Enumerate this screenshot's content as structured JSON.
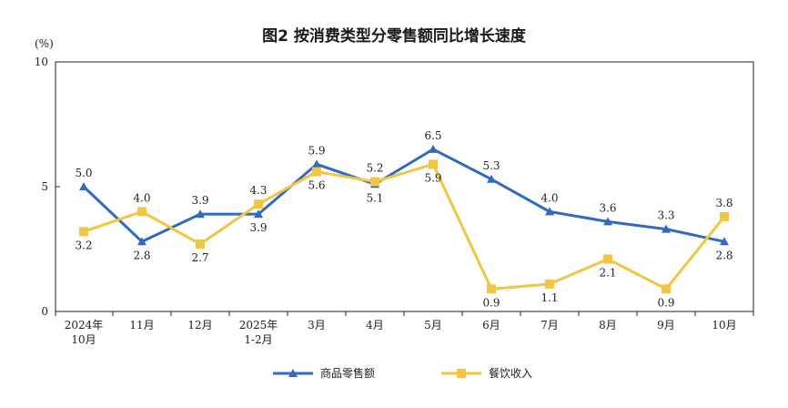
{
  "chart_data": {
    "type": "line",
    "title": "图2  按消费类型分零售额同比增长速度",
    "ylabel": "(%)",
    "ylim": [
      0,
      10
    ],
    "yticks": [
      "0",
      "5",
      "10"
    ],
    "categories": [
      [
        "2024年",
        "10月"
      ],
      [
        "11月"
      ],
      [
        "12月"
      ],
      [
        "2025年",
        "1-2月"
      ],
      [
        "3月"
      ],
      [
        "4月"
      ],
      [
        "5月"
      ],
      [
        "6月"
      ],
      [
        "7月"
      ],
      [
        "8月"
      ],
      [
        "9月"
      ],
      [
        "10月"
      ]
    ],
    "series": [
      {
        "name": "商品零售额",
        "color": "#2f6bbf",
        "marker": "triangle",
        "values": [
          5.0,
          2.8,
          3.9,
          3.9,
          5.9,
          5.1,
          6.5,
          5.3,
          4.0,
          3.6,
          3.3,
          2.8
        ],
        "labels": [
          "5.0",
          "2.8",
          "3.9",
          "3.9",
          "5.9",
          "5.1",
          "6.5",
          "5.3",
          "4.0",
          "3.6",
          "3.3",
          "2.8"
        ],
        "label_pos": [
          "above",
          "below",
          "above",
          "below",
          "above",
          "below",
          "above",
          "above",
          "above",
          "above",
          "above",
          "below"
        ]
      },
      {
        "name": "餐饮收入",
        "color": "#f2c542",
        "marker": "square",
        "values": [
          3.2,
          4.0,
          2.7,
          4.3,
          5.6,
          5.2,
          5.9,
          0.9,
          1.1,
          2.1,
          0.9,
          3.8
        ],
        "labels": [
          "3.2",
          "4.0",
          "2.7",
          "4.3",
          "5.6",
          "5.2",
          "5.9",
          "0.9",
          "1.1",
          "2.1",
          "0.9",
          "3.8"
        ],
        "label_pos": [
          "below",
          "above",
          "below",
          "above",
          "below",
          "above",
          "below",
          "below",
          "below",
          "below",
          "below",
          "above"
        ]
      }
    ],
    "legend": "bottom-center",
    "grid": false
  }
}
